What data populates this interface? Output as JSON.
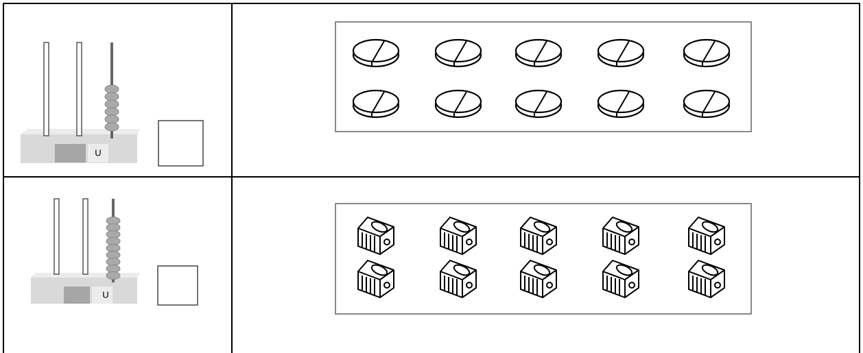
{
  "rows": [
    {
      "abacus_label": "U"
    },
    {
      "abacus_label": "U"
    }
  ]
}
